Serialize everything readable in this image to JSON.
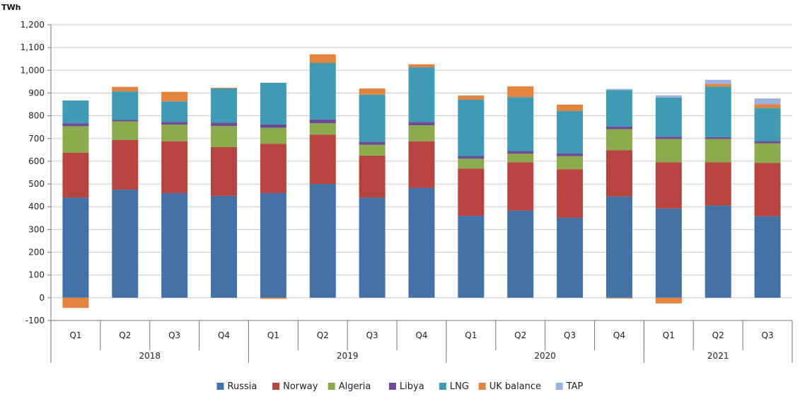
{
  "chart_data": {
    "type": "bar",
    "stacked": true,
    "unit_label": "TWh",
    "ylim": [
      -100,
      1200
    ],
    "yticks": [
      -100,
      0,
      100,
      200,
      300,
      400,
      500,
      600,
      700,
      800,
      900,
      1000,
      1100,
      1200
    ],
    "ytick_labels": [
      "-100",
      "0",
      "100",
      "200",
      "300",
      "400",
      "500",
      "600",
      "700",
      "800",
      "900",
      "1,000",
      "1,100",
      "1,200"
    ],
    "grid": true,
    "legend_position": "bottom",
    "categories": [
      "Q1",
      "Q2",
      "Q3",
      "Q4",
      "Q1",
      "Q2",
      "Q3",
      "Q4",
      "Q1",
      "Q2",
      "Q3",
      "Q4",
      "Q1",
      "Q2",
      "Q3"
    ],
    "groups": [
      {
        "label": "2018",
        "count": 4
      },
      {
        "label": "2019",
        "count": 4
      },
      {
        "label": "2020",
        "count": 4
      },
      {
        "label": "2021",
        "count": 3
      }
    ],
    "series": [
      {
        "name": "Russia",
        "color": "#4472a8",
        "values": [
          440,
          475,
          460,
          448,
          460,
          500,
          440,
          483,
          360,
          383,
          352,
          445,
          392,
          405,
          358
        ]
      },
      {
        "name": "Norway",
        "color": "#b5453e",
        "values": [
          197,
          218,
          228,
          214,
          217,
          217,
          185,
          205,
          208,
          213,
          213,
          203,
          203,
          190,
          234
        ]
      },
      {
        "name": "Algeria",
        "color": "#8cab4f",
        "values": [
          117,
          82,
          73,
          93,
          70,
          50,
          47,
          70,
          43,
          37,
          57,
          93,
          103,
          103,
          87
        ]
      },
      {
        "name": "Libya",
        "color": "#6e4b96",
        "values": [
          13,
          7,
          12,
          15,
          15,
          17,
          13,
          15,
          12,
          12,
          12,
          12,
          10,
          8,
          10
        ]
      },
      {
        "name": "LNG",
        "color": "#3f9bb3",
        "values": [
          100,
          125,
          90,
          150,
          183,
          248,
          208,
          240,
          248,
          237,
          187,
          160,
          172,
          222,
          145
        ]
      },
      {
        "name": "UK balance",
        "color": "#e0843f",
        "values": [
          -45,
          20,
          42,
          3,
          -5,
          38,
          27,
          13,
          18,
          47,
          28,
          -3,
          -25,
          12,
          17
        ]
      },
      {
        "name": "TAP",
        "color": "#9db3dd",
        "values": [
          0,
          0,
          0,
          0,
          0,
          0,
          0,
          0,
          0,
          0,
          0,
          5,
          10,
          18,
          25
        ]
      }
    ]
  }
}
